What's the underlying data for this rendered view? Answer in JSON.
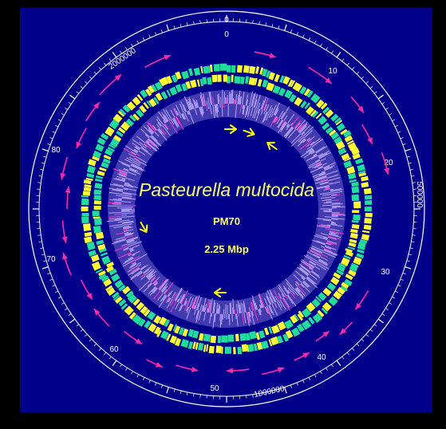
{
  "diagram": {
    "title": "Pasteurella multocida",
    "strain": "PM70",
    "genome_size": "2.25 Mbp",
    "outer_scale_labels": [
      "0",
      "500000",
      "1000000",
      "2000000"
    ],
    "inner_scale_labels": [
      "0",
      "10",
      "20",
      "30",
      "40",
      "50",
      "60",
      "70",
      "80"
    ],
    "colors": {
      "background_panel": "#00008b",
      "frame": "#000000",
      "scale_lines": "#ffffff",
      "gene_ring_yellow": "#ffff33",
      "gene_ring_teal": "#22dd99",
      "gc_plot_lavender": "#b9a6f5",
      "gc_plot_magenta": "#ff33cc",
      "direction_arrows_magenta": "#ff2aa6",
      "inner_arrows_yellow": "#ffff00",
      "text_white": "#ffffff",
      "text_yellow": "#ffff66"
    }
  }
}
